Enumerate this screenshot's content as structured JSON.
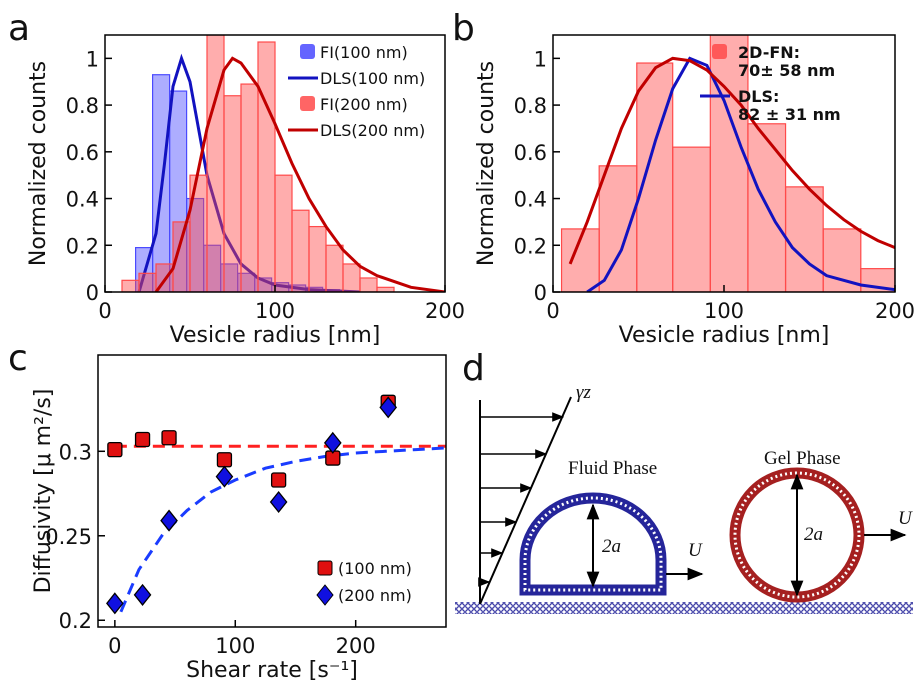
{
  "chart_data": [
    {
      "type": "histogram",
      "panel": "a",
      "x_label": "Vesicle radius [nm]",
      "y_label": "Normalized counts",
      "xlim": [
        0,
        200
      ],
      "ylim": [
        0,
        1.1
      ],
      "xticks": [
        0,
        100,
        200
      ],
      "yticks": [
        0,
        0.2,
        0.4,
        0.6,
        0.8,
        1
      ],
      "legend": "upper right",
      "series": [
        {
          "name": "FI(100 nm)",
          "type": "histogram",
          "color": "#4a4aff",
          "bins": [
            18,
            28,
            38,
            48,
            58,
            68,
            78,
            88,
            98,
            108,
            118,
            128,
            138
          ],
          "values": [
            0.19,
            0.93,
            0.86,
            0.4,
            0.2,
            0.12,
            0.08,
            0.06,
            0.04,
            0.03,
            0.02,
            0.01
          ]
        },
        {
          "name": "DLS(100 nm)",
          "type": "line",
          "color": "#1212c0",
          "x": [
            20,
            30,
            35,
            40,
            45,
            50,
            55,
            60,
            70,
            80,
            90,
            100,
            120,
            150
          ],
          "values": [
            0,
            0.25,
            0.55,
            0.88,
            1.0,
            0.9,
            0.7,
            0.5,
            0.25,
            0.12,
            0.06,
            0.03,
            0.01,
            0
          ]
        },
        {
          "name": "FI(200 nm)",
          "type": "histogram",
          "color": "#ff4a4a",
          "bins": [
            10,
            20,
            30,
            40,
            50,
            60,
            70,
            80,
            90,
            100,
            110,
            120,
            130,
            140,
            150,
            160,
            170
          ],
          "values": [
            0.05,
            0.08,
            0.12,
            0.3,
            0.5,
            1.1,
            0.84,
            0.89,
            1.07,
            0.5,
            0.35,
            0.28,
            0.2,
            0.12,
            0.06,
            0.02
          ]
        },
        {
          "name": "DLS(200 nm)",
          "type": "line",
          "color": "#c00000",
          "x": [
            30,
            40,
            50,
            60,
            70,
            75,
            80,
            90,
            100,
            110,
            120,
            130,
            140,
            150,
            160,
            180,
            200
          ],
          "values": [
            0,
            0.1,
            0.35,
            0.7,
            0.95,
            1.0,
            0.98,
            0.88,
            0.72,
            0.55,
            0.4,
            0.28,
            0.18,
            0.11,
            0.07,
            0.02,
            0
          ]
        }
      ]
    },
    {
      "type": "histogram",
      "panel": "b",
      "x_label": "Vesicle radius [nm]",
      "y_label": "Normalized counts",
      "xlim": [
        0,
        200
      ],
      "ylim": [
        0,
        1.1
      ],
      "xticks": [
        0,
        100,
        200
      ],
      "yticks": [
        0,
        0.2,
        0.4,
        0.6,
        0.8,
        1
      ],
      "legend": "upper right",
      "series": [
        {
          "name": "2D-FN:",
          "detail": "70± 58 nm",
          "type": "histogram",
          "color": "#ff4a4a",
          "bins": [
            5,
            27,
            49,
            70,
            92,
            114,
            136,
            158,
            180,
            200
          ],
          "values": [
            0.27,
            0.54,
            0.98,
            0.62,
            1.1,
            0.72,
            0.45,
            0.27,
            0.1
          ]
        },
        {
          "name": "DLS:",
          "detail": "82 ± 31 nm",
          "type": "line",
          "color": "#1212c0",
          "x": [
            20,
            30,
            40,
            50,
            60,
            70,
            80,
            90,
            100,
            110,
            120,
            130,
            140,
            150,
            160,
            180,
            200
          ],
          "values": [
            0,
            0.05,
            0.18,
            0.4,
            0.65,
            0.87,
            1.0,
            0.97,
            0.82,
            0.62,
            0.44,
            0.3,
            0.19,
            0.12,
            0.07,
            0.03,
            0.01
          ]
        },
        {
          "type": "line",
          "color": "#c00000",
          "x": [
            10,
            20,
            30,
            40,
            50,
            60,
            70,
            80,
            90,
            100,
            110,
            120,
            130,
            140,
            150,
            160,
            170,
            180,
            190,
            200
          ],
          "values": [
            0.12,
            0.3,
            0.5,
            0.7,
            0.86,
            0.96,
            1.0,
            0.99,
            0.95,
            0.88,
            0.8,
            0.7,
            0.61,
            0.52,
            0.44,
            0.37,
            0.31,
            0.26,
            0.22,
            0.19
          ]
        }
      ]
    },
    {
      "type": "scatter",
      "panel": "c",
      "x_label": "Shear rate [s⁻¹]",
      "y_label": "Diffusivity [μ m²/s]",
      "xlim": [
        -14,
        275
      ],
      "ylim": [
        0.196,
        0.357
      ],
      "xticks": [
        0,
        100,
        200
      ],
      "yticks": [
        0.2,
        0.25,
        0.3
      ],
      "legend": "lower right",
      "series": [
        {
          "type": "line",
          "dashed": true,
          "color": "#ff2020",
          "x": [
            0,
            275
          ],
          "values": [
            0.303,
            0.303
          ]
        },
        {
          "type": "line",
          "dashed": true,
          "color": "#1a3cff",
          "x": [
            5,
            20,
            40,
            60,
            80,
            100,
            125,
            150,
            175,
            200,
            225,
            250,
            275
          ],
          "values": [
            0.205,
            0.23,
            0.251,
            0.265,
            0.276,
            0.283,
            0.29,
            0.294,
            0.297,
            0.299,
            0.3,
            0.301,
            0.302
          ]
        },
        {
          "name": "(100 nm)",
          "type": "scatter",
          "marker": "square",
          "color": "#e01010",
          "x": [
            0,
            23,
            45,
            91,
            136,
            181,
            227
          ],
          "values": [
            0.301,
            0.307,
            0.308,
            0.295,
            0.283,
            0.296,
            0.329
          ]
        },
        {
          "name": "(200 nm)",
          "type": "scatter",
          "marker": "diamond",
          "color": "#1010e0",
          "x": [
            0,
            23,
            45,
            91,
            136,
            181,
            227
          ],
          "values": [
            0.21,
            0.215,
            0.259,
            0.285,
            0.27,
            0.305,
            0.326
          ]
        }
      ]
    }
  ],
  "diagram": {
    "panel": "d",
    "shear": "γz",
    "fluid": "Fluid Phase",
    "gel": "Gel Phase",
    "fluid_size": "2a",
    "gel_size": "2a",
    "fluid_velocity": "U",
    "gel_velocity": "U"
  }
}
